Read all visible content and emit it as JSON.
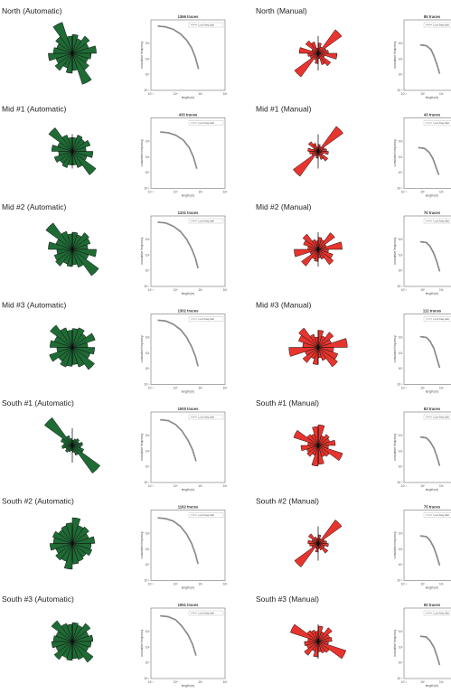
{
  "colors": {
    "automatic": "#1f6b35",
    "manual": "#e8342e",
    "curve": "#8a8a8a",
    "axis": "#555555"
  },
  "legend_label": "Lum freq dist",
  "ylabel": "cumulative frequency",
  "xlabel": "length (m)",
  "xticks": [
    "10⁻¹",
    "10⁰",
    "10¹",
    "10²"
  ],
  "yticks": [
    "10²",
    "10¹",
    "10⁰",
    "10⁻¹"
  ],
  "chart_data": [
    {
      "type": "rose+line",
      "panel_title": "North (Automatic)",
      "trace_title": "1366 traces",
      "rose_color": "automatic",
      "rose": [
        0.55,
        0.45,
        0.62,
        0.5,
        0.7,
        0.55,
        0.48,
        0.6,
        0.95,
        0.5,
        0.58,
        0.45,
        0.62,
        0.5,
        0.7,
        0.55,
        0.48,
        0.6,
        0.95,
        0.5
      ],
      "curve": [
        [
          -0.7,
          3.1
        ],
        [
          -0.4,
          3.05
        ],
        [
          -0.1,
          2.9
        ],
        [
          0.2,
          2.6
        ],
        [
          0.45,
          2.2
        ],
        [
          0.65,
          1.7
        ],
        [
          0.8,
          1.1
        ],
        [
          0.92,
          0.4
        ]
      ]
    },
    {
      "type": "rose+line",
      "panel_title": "North (Manual)",
      "trace_title": "85 traces",
      "rose_color": "manual",
      "rose": [
        0.3,
        0.2,
        0.85,
        0.25,
        0.3,
        0.55,
        0.2,
        0.45,
        0.35,
        0.15,
        0.3,
        0.2,
        0.85,
        0.25,
        0.3,
        0.55,
        0.2,
        0.45,
        0.35,
        0.15
      ],
      "curve": [
        [
          -0.1,
          1.9
        ],
        [
          0.2,
          1.85
        ],
        [
          0.45,
          1.6
        ],
        [
          0.6,
          1.2
        ],
        [
          0.75,
          0.7
        ],
        [
          0.9,
          0.1
        ]
      ]
    },
    {
      "type": "rose+line",
      "panel_title": "Mid #1 (Automatic)",
      "trace_title": "433 traces",
      "rose_color": "automatic",
      "rose": [
        0.4,
        0.5,
        0.45,
        0.55,
        0.4,
        0.6,
        0.45,
        0.85,
        0.5,
        0.4,
        0.4,
        0.5,
        0.45,
        0.55,
        0.4,
        0.6,
        0.45,
        0.85,
        0.5,
        0.4
      ],
      "curve": [
        [
          -0.6,
          2.6
        ],
        [
          -0.3,
          2.55
        ],
        [
          0.0,
          2.4
        ],
        [
          0.3,
          2.1
        ],
        [
          0.55,
          1.6
        ],
        [
          0.72,
          1.0
        ],
        [
          0.85,
          0.3
        ]
      ]
    },
    {
      "type": "rose+line",
      "panel_title": "Mid #1 (Manual)",
      "trace_title": "43 traces",
      "rose_color": "manual",
      "rose": [
        0.2,
        0.15,
        0.9,
        0.2,
        0.25,
        0.3,
        0.15,
        0.35,
        0.25,
        0.12,
        0.2,
        0.15,
        0.9,
        0.2,
        0.25,
        0.3,
        0.15,
        0.35,
        0.25,
        0.12
      ],
      "curve": [
        [
          -0.2,
          1.6
        ],
        [
          0.1,
          1.55
        ],
        [
          0.35,
          1.3
        ],
        [
          0.55,
          0.9
        ],
        [
          0.7,
          0.4
        ],
        [
          0.85,
          -0.1
        ]
      ]
    },
    {
      "type": "rose+line",
      "panel_title": "Mid #2 (Automatic)",
      "trace_title": "1331 traces",
      "rose_color": "automatic",
      "rose": [
        0.5,
        0.45,
        0.6,
        0.55,
        0.45,
        0.7,
        0.5,
        0.95,
        0.55,
        0.45,
        0.5,
        0.45,
        0.6,
        0.55,
        0.45,
        0.7,
        0.5,
        0.95,
        0.55,
        0.45
      ],
      "curve": [
        [
          -0.7,
          3.1
        ],
        [
          -0.4,
          3.05
        ],
        [
          -0.1,
          2.85
        ],
        [
          0.2,
          2.5
        ],
        [
          0.45,
          2.0
        ],
        [
          0.65,
          1.4
        ],
        [
          0.8,
          0.8
        ],
        [
          0.9,
          0.2
        ]
      ]
    },
    {
      "type": "rose+line",
      "panel_title": "Mid #2 (Manual)",
      "trace_title": "75 traces",
      "rose_color": "manual",
      "rose": [
        0.35,
        0.3,
        0.6,
        0.25,
        0.7,
        0.3,
        0.45,
        0.55,
        0.3,
        0.25,
        0.35,
        0.3,
        0.6,
        0.25,
        0.7,
        0.3,
        0.45,
        0.55,
        0.3,
        0.25
      ],
      "curve": [
        [
          -0.1,
          1.85
        ],
        [
          0.2,
          1.8
        ],
        [
          0.4,
          1.55
        ],
        [
          0.6,
          1.1
        ],
        [
          0.75,
          0.6
        ],
        [
          0.9,
          0.0
        ]
      ]
    },
    {
      "type": "rose+line",
      "panel_title": "Mid #3 (Automatic)",
      "trace_title": "1302 traces",
      "rose_color": "automatic",
      "rose": [
        0.55,
        0.6,
        0.5,
        0.7,
        0.45,
        0.65,
        0.55,
        0.8,
        0.6,
        0.5,
        0.55,
        0.6,
        0.5,
        0.7,
        0.45,
        0.65,
        0.55,
        0.8,
        0.6,
        0.5
      ],
      "curve": [
        [
          -0.7,
          3.1
        ],
        [
          -0.4,
          3.05
        ],
        [
          -0.1,
          2.85
        ],
        [
          0.2,
          2.5
        ],
        [
          0.45,
          2.0
        ],
        [
          0.65,
          1.4
        ],
        [
          0.8,
          0.8
        ],
        [
          0.9,
          0.2
        ]
      ]
    },
    {
      "type": "rose+line",
      "panel_title": "Mid #3 (Manual)",
      "trace_title": "112 traces",
      "rose_color": "manual",
      "rose": [
        0.5,
        0.35,
        0.55,
        0.4,
        0.85,
        0.45,
        0.6,
        0.7,
        0.4,
        0.3,
        0.5,
        0.35,
        0.55,
        0.4,
        0.85,
        0.45,
        0.6,
        0.7,
        0.4,
        0.3
      ],
      "curve": [
        [
          -0.1,
          2.05
        ],
        [
          0.2,
          2.0
        ],
        [
          0.4,
          1.75
        ],
        [
          0.6,
          1.3
        ],
        [
          0.75,
          0.7
        ],
        [
          0.9,
          0.1
        ]
      ]
    },
    {
      "type": "rose+line",
      "panel_title": "South #1 (Automatic)",
      "trace_title": "1000 traces",
      "rose_color": "automatic",
      "rose": [
        0.15,
        0.2,
        0.25,
        0.2,
        0.3,
        0.25,
        0.35,
        1.0,
        0.3,
        0.2,
        0.15,
        0.2,
        0.25,
        0.2,
        0.3,
        0.25,
        0.35,
        1.0,
        0.3,
        0.2
      ],
      "curve": [
        [
          -0.6,
          3.0
        ],
        [
          -0.3,
          2.95
        ],
        [
          0.0,
          2.7
        ],
        [
          0.25,
          2.3
        ],
        [
          0.5,
          1.7
        ],
        [
          0.68,
          1.1
        ],
        [
          0.82,
          0.4
        ]
      ]
    },
    {
      "type": "rose+line",
      "panel_title": "South #1 (Manual)",
      "trace_title": "83 traces",
      "rose_color": "manual",
      "rose": [
        0.6,
        0.3,
        0.4,
        0.35,
        0.5,
        0.3,
        0.75,
        0.4,
        0.35,
        0.55,
        0.6,
        0.3,
        0.4,
        0.35,
        0.5,
        0.3,
        0.75,
        0.4,
        0.35,
        0.55
      ],
      "curve": [
        [
          -0.1,
          1.9
        ],
        [
          0.2,
          1.85
        ],
        [
          0.4,
          1.6
        ],
        [
          0.6,
          1.2
        ],
        [
          0.75,
          0.7
        ],
        [
          0.9,
          0.1
        ]
      ]
    },
    {
      "type": "rose+line",
      "panel_title": "South #2 (Automatic)",
      "trace_title": "1162 traces",
      "rose_color": "automatic",
      "rose": [
        0.75,
        0.55,
        0.6,
        0.5,
        0.65,
        0.55,
        0.6,
        0.5,
        0.55,
        0.6,
        0.75,
        0.55,
        0.6,
        0.5,
        0.65,
        0.55,
        0.6,
        0.5,
        0.55,
        0.6
      ],
      "curve": [
        [
          -0.7,
          3.0
        ],
        [
          -0.4,
          2.95
        ],
        [
          -0.1,
          2.8
        ],
        [
          0.2,
          2.45
        ],
        [
          0.45,
          1.95
        ],
        [
          0.65,
          1.35
        ],
        [
          0.8,
          0.7
        ],
        [
          0.9,
          0.1
        ]
      ]
    },
    {
      "type": "rose+line",
      "panel_title": "South #2 (Manual)",
      "trace_title": "75 traces",
      "rose_color": "manual",
      "rose": [
        0.25,
        0.15,
        0.85,
        0.2,
        0.25,
        0.3,
        0.2,
        0.35,
        0.2,
        0.15,
        0.25,
        0.15,
        0.85,
        0.2,
        0.25,
        0.3,
        0.2,
        0.35,
        0.2,
        0.15
      ],
      "curve": [
        [
          -0.1,
          1.85
        ],
        [
          0.2,
          1.8
        ],
        [
          0.4,
          1.55
        ],
        [
          0.6,
          1.1
        ],
        [
          0.75,
          0.6
        ],
        [
          0.9,
          0.0
        ]
      ]
    },
    {
      "type": "rose+line",
      "panel_title": "South #3 (Automatic)",
      "trace_title": "1051 traces",
      "rose_color": "automatic",
      "rose": [
        0.55,
        0.5,
        0.65,
        0.5,
        0.6,
        0.55,
        0.5,
        0.75,
        0.55,
        0.5,
        0.55,
        0.5,
        0.65,
        0.5,
        0.6,
        0.55,
        0.5,
        0.75,
        0.55,
        0.5
      ],
      "curve": [
        [
          -0.6,
          3.0
        ],
        [
          -0.3,
          2.95
        ],
        [
          0.0,
          2.75
        ],
        [
          0.25,
          2.35
        ],
        [
          0.5,
          1.8
        ],
        [
          0.68,
          1.2
        ],
        [
          0.82,
          0.5
        ]
      ]
    },
    {
      "type": "rose+line",
      "panel_title": "South #3 (Manual)",
      "trace_title": "50 traces",
      "rose_color": "manual",
      "rose": [
        0.45,
        0.3,
        0.5,
        0.35,
        0.4,
        0.3,
        0.85,
        0.4,
        0.35,
        0.3,
        0.45,
        0.3,
        0.5,
        0.35,
        0.4,
        0.3,
        0.85,
        0.4,
        0.35,
        0.3
      ],
      "curve": [
        [
          -0.1,
          1.7
        ],
        [
          0.2,
          1.65
        ],
        [
          0.4,
          1.4
        ],
        [
          0.6,
          1.0
        ],
        [
          0.75,
          0.5
        ],
        [
          0.9,
          -0.1
        ]
      ]
    }
  ]
}
